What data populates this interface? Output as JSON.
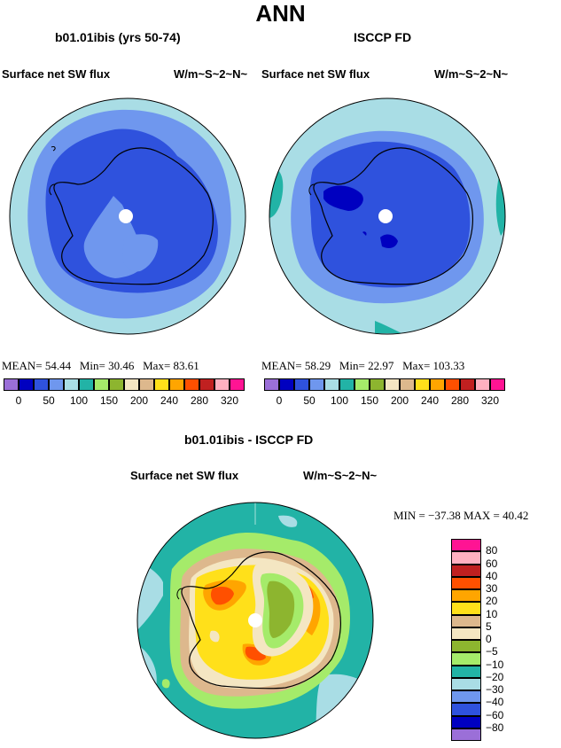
{
  "page": {
    "title": "ANN",
    "difference_title": "b01.01ibis - ISCCP FD"
  },
  "panels": [
    {
      "model_title": "b01.01ibis (yrs 50-74)",
      "variable": "Surface net SW flux",
      "units": "W/m~S~2~N~",
      "stats": {
        "mean_label": "MEAN=",
        "mean": "54.44",
        "min_label": "Min=",
        "min": "30.46",
        "max_label": "Max=",
        "max": "83.61"
      }
    },
    {
      "model_title": "ISCCP FD",
      "variable": "Surface net SW flux",
      "units": "W/m~S~2~N~",
      "stats": {
        "mean_label": "MEAN=",
        "mean": "58.29",
        "min_label": "Min=",
        "min": "22.97",
        "max_label": "Max=",
        "max": "103.33"
      }
    }
  ],
  "difference": {
    "variable": "Surface net SW flux",
    "units": "W/m~S~2~N~",
    "stats_text": "MIN = −37.38  MAX =  40.42"
  },
  "colorbar_top": {
    "colors": [
      "#9b6fd8",
      "#0000c0",
      "#2f52dd",
      "#6f97ee",
      "#a9dde5",
      "#22b3a6",
      "#a5eb6a",
      "#8db52f",
      "#f4e6c2",
      "#ddb88d",
      "#ffe01a",
      "#ffa500",
      "#ff5000",
      "#c02020",
      "#ffb0c0",
      "#ff1493"
    ],
    "labels": [
      "0",
      "50",
      "100",
      "150",
      "200",
      "240",
      "280",
      "320"
    ]
  },
  "colorbar_diff": {
    "colors_top_to_bottom": [
      "#ff1493",
      "#ffb0c0",
      "#c02020",
      "#ff5000",
      "#ffa500",
      "#ffe01a",
      "#ddb88d",
      "#f4e6c2",
      "#8db52f",
      "#a5eb6a",
      "#22b3a6",
      "#a9dde5",
      "#6f97ee",
      "#2f52dd",
      "#0000c0",
      "#9b6fd8"
    ],
    "labels_top_to_bottom": [
      "80",
      "60",
      "40",
      "30",
      "20",
      "10",
      "5",
      "0",
      "−5",
      "−10",
      "−20",
      "−30",
      "−40",
      "−60",
      "−80"
    ]
  }
}
